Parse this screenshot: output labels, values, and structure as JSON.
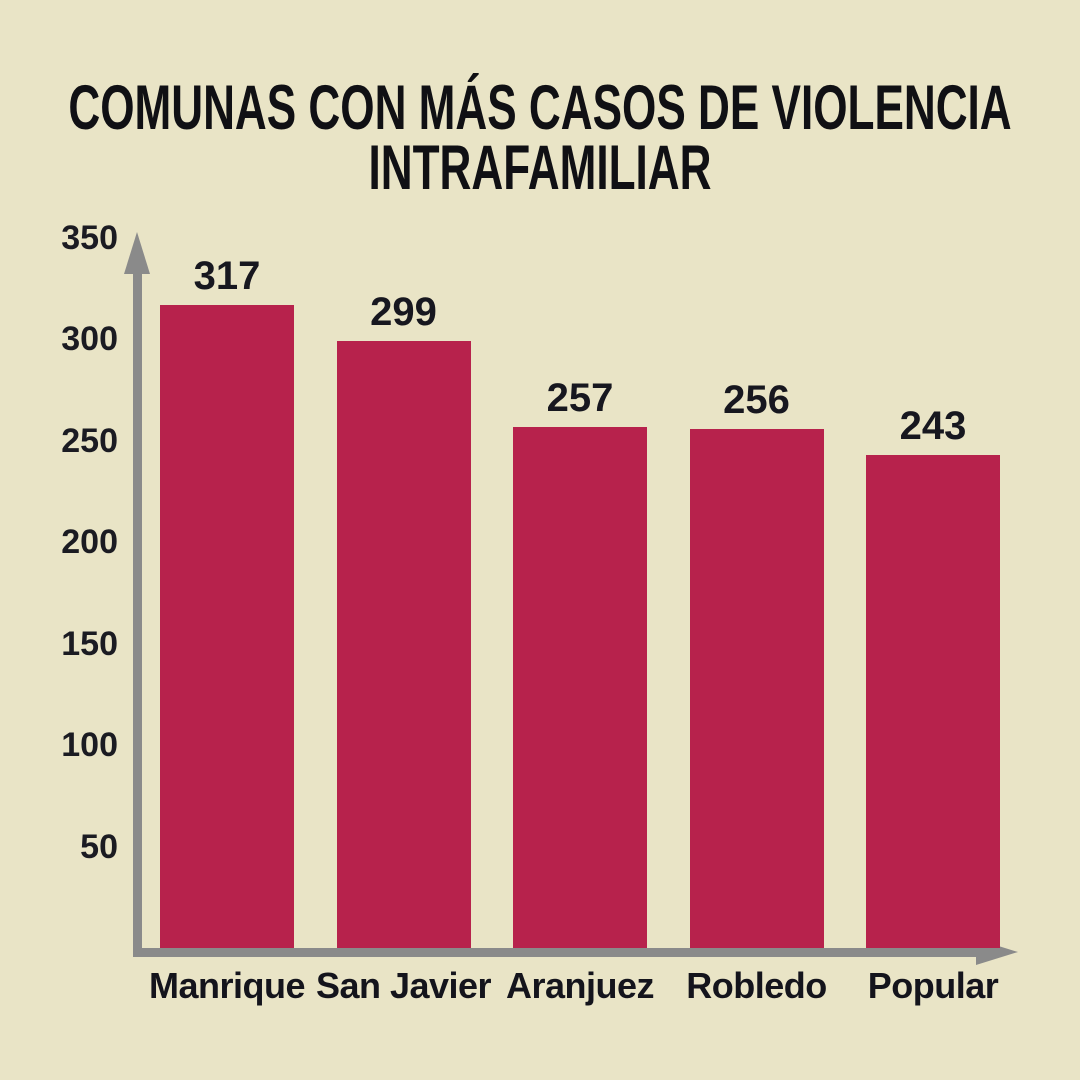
{
  "title": "COMUNAS CON MÁS CASOS DE VIOLENCIA INTRAFAMILIAR",
  "title_lines": [
    "COMUNAS CON MÁS CASOS DE VIOLENCIA",
    "INTRAFAMILIAR"
  ],
  "colors": {
    "background": "#E9E4C6",
    "bar": "#B7224C",
    "axis": "#8A8A8A",
    "title_text": "#101014",
    "label_text": "#17171F"
  },
  "chart_data": {
    "type": "bar",
    "title": "COMUNAS CON MÁS CASOS DE VIOLENCIA INTRAFAMILIAR",
    "categories": [
      "Manrique",
      "San Javier",
      "Aranjuez",
      "Robledo",
      "Popular"
    ],
    "values": [
      317,
      299,
      257,
      256,
      243
    ],
    "value_labels": [
      "317",
      "299",
      "257",
      "256",
      "243"
    ],
    "xlabel": "",
    "ylabel": "",
    "yticks": [
      350,
      300,
      250,
      200,
      150,
      100,
      50
    ],
    "ylim": [
      0,
      350
    ],
    "grid": false,
    "legend": null,
    "bar_color": "#B7224C",
    "axis_arrows": true
  }
}
